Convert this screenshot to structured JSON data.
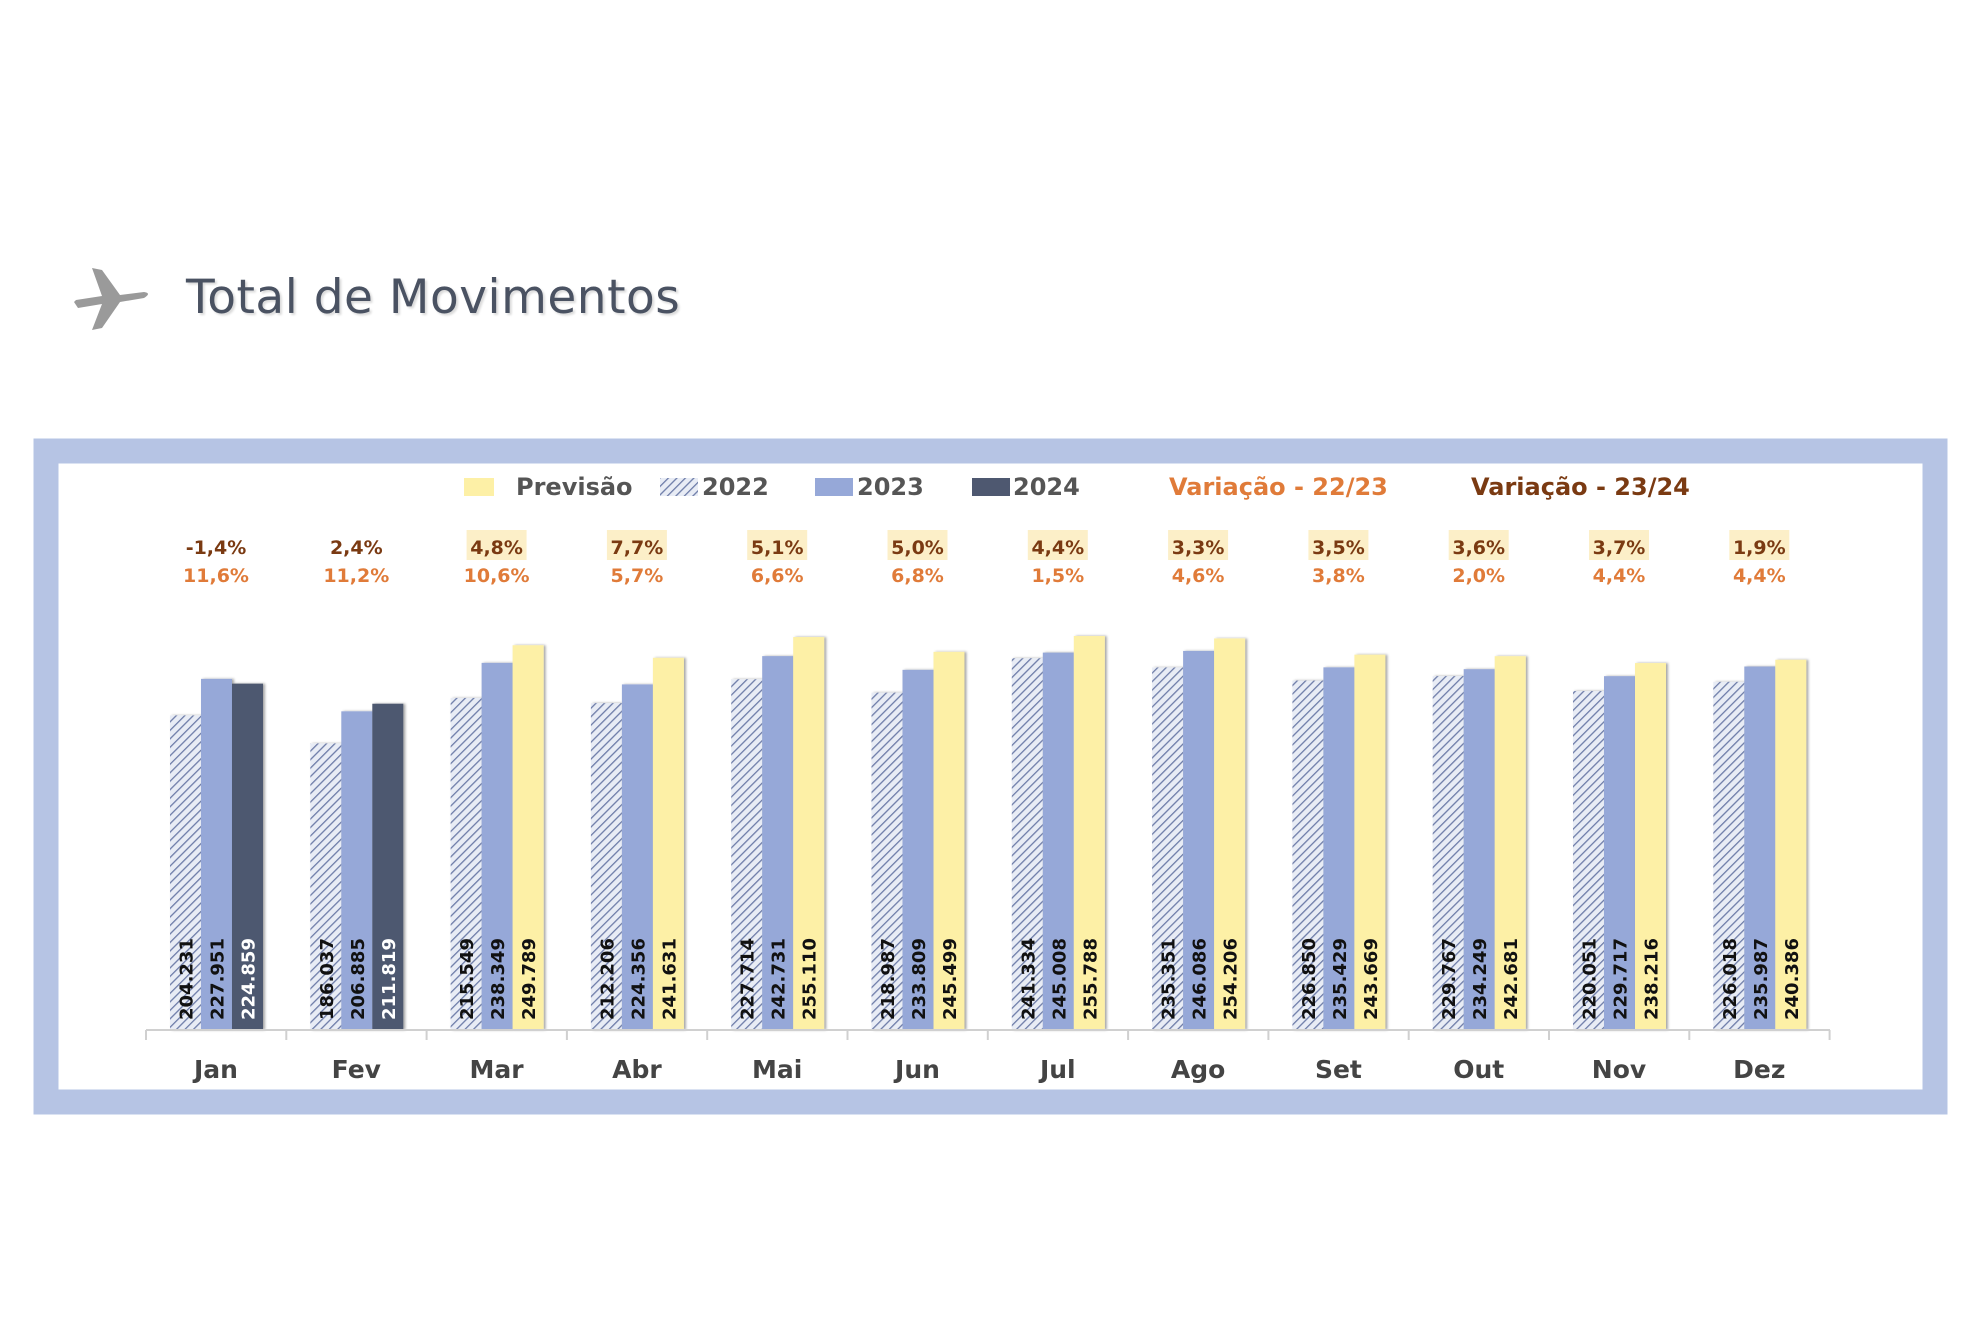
{
  "header": {
    "title": "Total de Movimentos",
    "icon": "airplane-icon"
  },
  "chart_data": {
    "type": "bar",
    "title": "Total de Movimentos",
    "categories": [
      "Jan",
      "Fev",
      "Mar",
      "Abr",
      "Mai",
      "Jun",
      "Jul",
      "Ago",
      "Set",
      "Out",
      "Nov",
      "Dez"
    ],
    "legend": [
      "Previsão",
      "2022",
      "2023",
      "2024",
      "Variação - 22/23",
      "Variação - 23/24"
    ],
    "legend_placement": "top",
    "series": [
      {
        "name": "2022",
        "color": "#7f8fbf",
        "pattern": "hatch",
        "values": [
          204231,
          186037,
          215549,
          212206,
          227714,
          218987,
          241334,
          235351,
          226850,
          229767,
          220051,
          226018
        ]
      },
      {
        "name": "2023",
        "color": "#96a8d8",
        "values": [
          227951,
          206885,
          238349,
          224356,
          242731,
          233809,
          245008,
          246086,
          235429,
          234249,
          229717,
          235987
        ]
      },
      {
        "name": "2024",
        "color": "#4e5870",
        "values": [
          224859,
          211819,
          null,
          null,
          null,
          null,
          null,
          null,
          null,
          null,
          null,
          null
        ]
      },
      {
        "name": "Previsão",
        "color": "#fdf0a6",
        "values": [
          null,
          null,
          249789,
          241631,
          255110,
          245499,
          255788,
          254206,
          243669,
          242681,
          238216,
          240386
        ]
      }
    ],
    "value_labels": {
      "2022": [
        "204.231",
        "186.037",
        "215.549",
        "212.206",
        "227.714",
        "218.987",
        "241.334",
        "235.351",
        "226.850",
        "229.767",
        "220.051",
        "226.018"
      ],
      "2023": [
        "227.951",
        "206.885",
        "238.349",
        "224.356",
        "242.731",
        "233.809",
        "245.008",
        "246.086",
        "235.429",
        "234.249",
        "229.717",
        "235.987"
      ],
      "third": [
        "224.859",
        "211.819",
        "249.789",
        "241.631",
        "255.110",
        "245.499",
        "255.788",
        "254.206",
        "243.669",
        "242.681",
        "238.216",
        "240.386"
      ]
    },
    "variacao_23_24": [
      "-1,4%",
      "2,4%",
      "4,8%",
      "7,7%",
      "5,1%",
      "5,0%",
      "4,4%",
      "3,3%",
      "3,5%",
      "3,6%",
      "3,7%",
      "1,9%"
    ],
    "variacao_22_23": [
      "11,6%",
      "11,2%",
      "10,6%",
      "5,7%",
      "6,6%",
      "6,8%",
      "1,5%",
      "4,6%",
      "3,8%",
      "2,0%",
      "4,4%",
      "4,4%"
    ],
    "forecast_highlight": [
      false,
      false,
      true,
      true,
      true,
      true,
      true,
      true,
      true,
      true,
      true,
      true
    ],
    "colors": {
      "var_22_23": "#e07b39",
      "var_23_24": "#7a3a12",
      "frame": "#b6c4e4",
      "forecast_box": "#fcefc8"
    },
    "ylim": [
      0,
      260000
    ],
    "grid": false
  }
}
